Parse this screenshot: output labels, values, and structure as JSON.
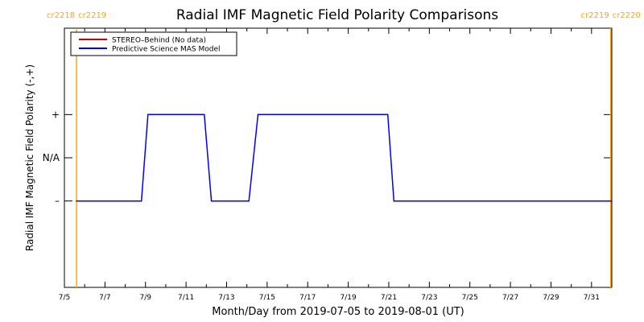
{
  "chart_data": {
    "type": "line",
    "title": "Radial IMF Magnetic Field Polarity Comparisons",
    "xlabel": "Month/Day from 2019-07-05 to 2019-08-01 (UT)",
    "ylabel": "Radial IMF Magnetic Field Polarity (-,+)",
    "x_range": [
      0,
      27
    ],
    "y_range": [
      -3,
      3
    ],
    "x_ticks": [
      {
        "x": 0,
        "label": "7/5"
      },
      {
        "x": 2,
        "label": "7/7"
      },
      {
        "x": 4,
        "label": "7/9"
      },
      {
        "x": 6,
        "label": "7/11"
      },
      {
        "x": 8,
        "label": "7/13"
      },
      {
        "x": 10,
        "label": "7/15"
      },
      {
        "x": 12,
        "label": "7/17"
      },
      {
        "x": 14,
        "label": "7/19"
      },
      {
        "x": 16,
        "label": "7/21"
      },
      {
        "x": 18,
        "label": "7/23"
      },
      {
        "x": 20,
        "label": "7/25"
      },
      {
        "x": 22,
        "label": "7/27"
      },
      {
        "x": 24,
        "label": "7/29"
      },
      {
        "x": 26,
        "label": "7/31"
      }
    ],
    "y_ticks": [
      {
        "y": 1,
        "label": "+"
      },
      {
        "y": 0,
        "label": "N/A"
      },
      {
        "y": -1,
        "label": "–"
      }
    ],
    "legend": {
      "placement": "top-left",
      "entries": [
        {
          "label": "STEREO–Behind (No data)",
          "color": "#cc0000"
        },
        {
          "label": "Predictive Science MAS Model",
          "color": "#0000ff"
        }
      ]
    },
    "series": [
      {
        "name": "STEREO–Behind (No data)",
        "color": "#cc0000",
        "x": [],
        "y": []
      },
      {
        "name": "Predictive Science MAS Model",
        "color": "#0000ff",
        "x": [
          0.6,
          3.8,
          4.12,
          6.9,
          7.25,
          9.1,
          9.55,
          15.95,
          16.25,
          27.0
        ],
        "y": [
          -1,
          -1,
          1,
          1,
          -1,
          -1,
          1,
          1,
          -1,
          -1
        ]
      }
    ],
    "carrington_markers": [
      {
        "x": 0.6,
        "left_label": "cr2218",
        "right_label": "cr2219",
        "color": "#ffa500"
      },
      {
        "x": 26.95,
        "left_label": "cr2219",
        "right_label": "cr2220",
        "color": "#ffa500"
      }
    ]
  }
}
